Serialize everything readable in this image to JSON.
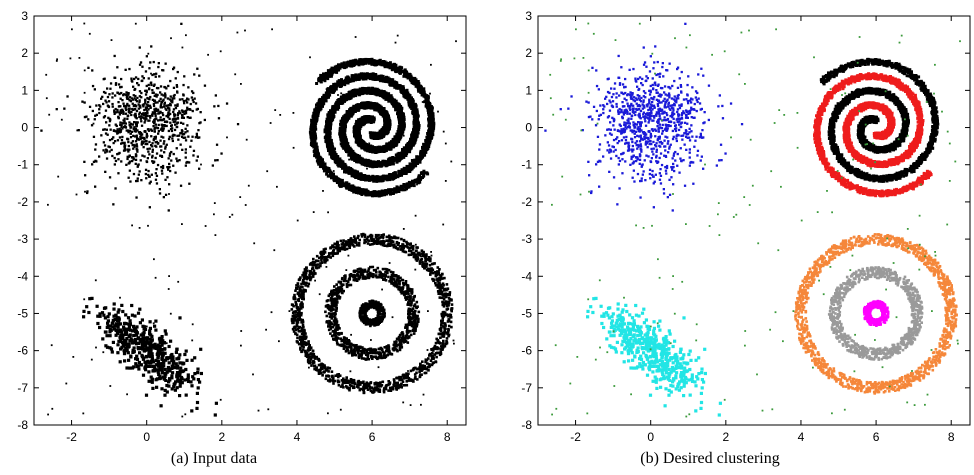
{
  "chart_data": [
    {
      "type": "scatter",
      "caption": "(a) Input data",
      "xlim": [
        -3,
        8.5
      ],
      "ylim": [
        -8,
        3
      ],
      "xticks": [
        "-2",
        "0",
        "2",
        "4",
        "6",
        "8"
      ],
      "yticks": [
        "3",
        "2",
        "1",
        "0",
        "-1",
        "-2",
        "-3",
        "-4",
        "-5",
        "-6",
        "-7",
        "-8"
      ],
      "grid": false,
      "series": [
        {
          "shape": "gaussian-blob",
          "color": "#000000",
          "center": [
            0,
            0.1
          ],
          "spread": [
            0.75,
            0.75
          ],
          "count": 900
        },
        {
          "shape": "gaussian-blob",
          "color": "#000000",
          "center": [
            0,
            -6
          ],
          "spread": [
            0.55,
            0.55
          ],
          "rotation_deg": -40,
          "count": 520
        },
        {
          "shape": "double-spiral",
          "color": "#000000",
          "center": [
            6,
            0
          ]
        },
        {
          "shape": "concentric-rings",
          "color": "#000000",
          "center": [
            6,
            -5
          ],
          "radii": [
            0.25,
            1.1,
            2.0
          ]
        },
        {
          "shape": "uniform-noise",
          "color": "#000000",
          "count": 170
        }
      ]
    },
    {
      "type": "scatter",
      "caption": "(b) Desired clustering",
      "xlim": [
        -3,
        8.5
      ],
      "ylim": [
        -8,
        3
      ],
      "xticks": [
        "-2",
        "0",
        "2",
        "4",
        "6",
        "8"
      ],
      "yticks": [
        "3",
        "2",
        "1",
        "0",
        "-1",
        "-2",
        "-3",
        "-4",
        "-5",
        "-6",
        "-7",
        "-8"
      ],
      "grid": false,
      "series": [
        {
          "shape": "gaussian-blob",
          "color": "#1a1ad8",
          "center": [
            0,
            0.1
          ],
          "spread": [
            0.75,
            0.75
          ],
          "count": 900
        },
        {
          "shape": "gaussian-blob",
          "color": "#22e5e5",
          "center": [
            0,
            -6
          ],
          "spread": [
            0.55,
            0.55
          ],
          "rotation_deg": -40,
          "count": 520
        },
        {
          "shape": "spiral-arm",
          "color": "#000000",
          "center": [
            6,
            0
          ]
        },
        {
          "shape": "spiral-arm",
          "color": "#ee1c1c",
          "center": [
            6,
            0
          ]
        },
        {
          "shape": "ring",
          "color": "#ff00ff",
          "center": [
            6,
            -5
          ],
          "radius": 0.25
        },
        {
          "shape": "ring",
          "color": "#9a9a9a",
          "center": [
            6,
            -5
          ],
          "radius": 1.1
        },
        {
          "shape": "ring",
          "color": "#f5873a",
          "center": [
            6,
            -5
          ],
          "radius": 2.0
        },
        {
          "shape": "uniform-noise",
          "color": "#3c9a3c",
          "count": 170
        }
      ]
    }
  ]
}
